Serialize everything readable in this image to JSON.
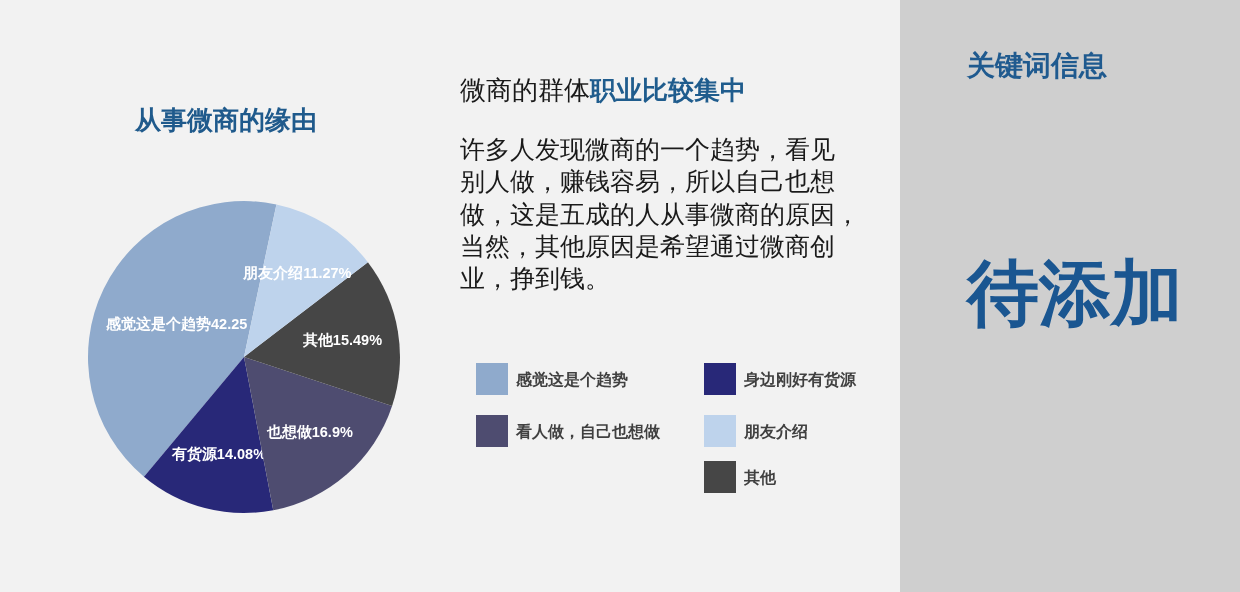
{
  "chart_data": {
    "type": "pie",
    "title": "从事微商的缘由",
    "categories": [
      "感觉这是个趋势",
      "身边刚好有货源",
      "看人做，自己也想做",
      "其他",
      "朋友介绍"
    ],
    "values": [
      42.25,
      14.08,
      16.9,
      15.49,
      11.27
    ],
    "colors": [
      "#8faacc",
      "#282878",
      "#4e4c70",
      "#464646",
      "#bed3ec"
    ],
    "value_labels": [
      "感觉这是个趋势42.25",
      "有货源14.08%",
      "也想做16.9%",
      "其他15.49%",
      "朋友介绍11.27%"
    ],
    "legend": "right",
    "annotations": [
      "微商的群体",
      "职业比较集中",
      "许多人发现微商的一个趋势，看见别人做，赚钱容易，所以自己也想做，这是五成的人从事微商的原因，当然，其他原因是希望通过微商创业，挣到钱。",
      "关键词信息",
      "待添加"
    ]
  }
}
